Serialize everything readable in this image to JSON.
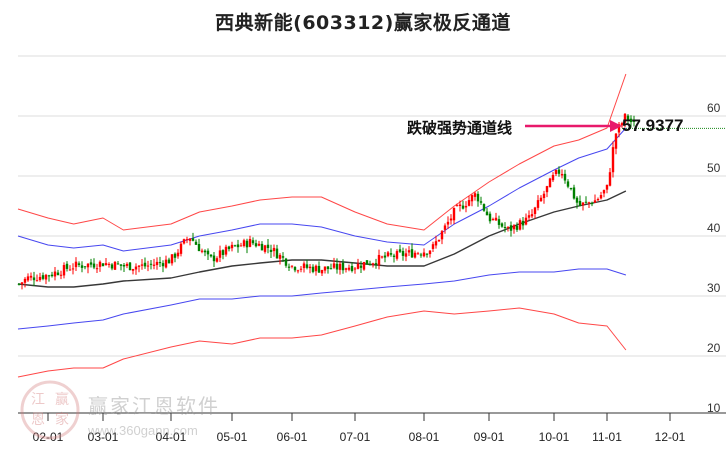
{
  "title": "西典新能(603312)赢家极反通道",
  "annotation": {
    "label": "跌破强势通道线",
    "value": "57.9377",
    "arrow_color": "#e8196b",
    "value_line_color": "#1a8a1a"
  },
  "watermark": {
    "text": "赢家江恩软件",
    "url": "www.360gann.com",
    "logo_chars": [
      "江",
      "赢",
      "恩",
      "家"
    ]
  },
  "colors": {
    "up_candle": "#ff0000",
    "down_candle": "#008000",
    "outer_band": "#ff3333",
    "inner_band": "#3333ee",
    "mid_line": "#222222",
    "grid": "#dddddd"
  },
  "chart_data": {
    "type": "candlestick",
    "title": "西典新能(603312)赢家极反通道",
    "xlabel": "",
    "ylabel": "",
    "ylim": [
      10,
      70
    ],
    "y_ticks": [
      10,
      20,
      30,
      40,
      50,
      60
    ],
    "x_ticks": [
      "02-01",
      "03-01",
      "04-01",
      "05-01",
      "06-01",
      "07-01",
      "08-01",
      "09-01",
      "10-01",
      "11-01",
      "12-01"
    ],
    "grid": true,
    "annotation": {
      "text": "跌破强势通道线",
      "value": 57.9377
    },
    "series": [
      {
        "name": "upper_outer_band",
        "color": "red",
        "x": [
          "01-10",
          "02-01",
          "02-15",
          "03-01",
          "03-10",
          "04-01",
          "04-15",
          "05-01",
          "05-15",
          "06-01",
          "06-15",
          "07-01",
          "07-15",
          "08-01",
          "08-15",
          "09-01",
          "09-15",
          "10-01",
          "10-15",
          "11-01",
          "11-10"
        ],
        "values": [
          44.5,
          43,
          42,
          43,
          41,
          42,
          44,
          45,
          46,
          46.5,
          46.5,
          44,
          42,
          41,
          45,
          49,
          52,
          55,
          56,
          58,
          67
        ]
      },
      {
        "name": "upper_inner_band",
        "color": "blue",
        "x": [
          "01-10",
          "02-01",
          "02-15",
          "03-01",
          "03-10",
          "04-01",
          "04-15",
          "05-01",
          "05-15",
          "06-01",
          "06-15",
          "07-01",
          "07-15",
          "08-01",
          "08-15",
          "09-01",
          "09-15",
          "10-01",
          "10-15",
          "11-01",
          "11-10"
        ],
        "values": [
          40,
          38.5,
          38,
          38.5,
          37.5,
          38.5,
          40,
          41,
          42,
          42,
          41.5,
          40,
          39,
          38.5,
          42,
          45,
          48,
          51,
          53,
          54.5,
          58
        ]
      },
      {
        "name": "middle_line",
        "color": "black",
        "x": [
          "01-10",
          "02-01",
          "02-15",
          "03-01",
          "03-10",
          "04-01",
          "04-15",
          "05-01",
          "05-15",
          "06-01",
          "06-15",
          "07-01",
          "07-15",
          "08-01",
          "08-15",
          "09-01",
          "09-15",
          "10-01",
          "10-15",
          "11-01",
          "11-10"
        ],
        "values": [
          32,
          31.5,
          31.5,
          32,
          32.5,
          33,
          34,
          35,
          35.5,
          36,
          36,
          35.5,
          35,
          35,
          37,
          40,
          42,
          44,
          45,
          46,
          47.5
        ]
      },
      {
        "name": "lower_inner_band",
        "color": "blue",
        "x": [
          "01-10",
          "02-01",
          "02-15",
          "03-01",
          "03-10",
          "04-01",
          "04-15",
          "05-01",
          "05-15",
          "06-01",
          "06-15",
          "07-01",
          "07-15",
          "08-01",
          "08-15",
          "09-01",
          "09-15",
          "10-01",
          "10-15",
          "11-01",
          "11-10"
        ],
        "values": [
          24.5,
          25,
          25.5,
          26,
          27,
          28.5,
          29.5,
          29.5,
          30,
          30,
          30.5,
          31,
          31.5,
          32,
          32.5,
          33.5,
          34,
          34,
          34.5,
          34.5,
          33.5
        ]
      },
      {
        "name": "lower_outer_band",
        "color": "red",
        "x": [
          "01-10",
          "02-01",
          "02-15",
          "03-01",
          "03-10",
          "04-01",
          "04-15",
          "05-01",
          "05-15",
          "06-01",
          "06-15",
          "07-01",
          "07-15",
          "08-01",
          "08-15",
          "09-01",
          "09-15",
          "10-01",
          "10-15",
          "11-01",
          "11-10"
        ],
        "values": [
          16.5,
          17.5,
          18,
          18,
          19.5,
          21.5,
          22.5,
          22,
          23,
          23,
          23.5,
          25,
          26.5,
          27.5,
          27,
          27.5,
          28,
          27,
          25.5,
          25,
          21
        ]
      },
      {
        "name": "price_close",
        "color": "red/green candles",
        "x": [
          "01-10",
          "01-20",
          "02-01",
          "02-15",
          "03-01",
          "03-10",
          "03-20",
          "04-01",
          "04-10",
          "04-20",
          "05-01",
          "05-10",
          "05-20",
          "06-01",
          "06-15",
          "07-01",
          "07-15",
          "08-01",
          "08-05",
          "08-15",
          "08-25",
          "09-01",
          "09-10",
          "09-20",
          "10-01",
          "10-05",
          "10-15",
          "10-25",
          "11-01",
          "11-05",
          "11-10",
          "11-15"
        ],
        "values": [
          32,
          33,
          33.5,
          35,
          35.5,
          35,
          35,
          36,
          40,
          36,
          38,
          39,
          38,
          35,
          34.5,
          35,
          36.5,
          37.5,
          38,
          44,
          47,
          43,
          41,
          43,
          50,
          51,
          45,
          46,
          48,
          57,
          60,
          58
        ]
      }
    ]
  }
}
